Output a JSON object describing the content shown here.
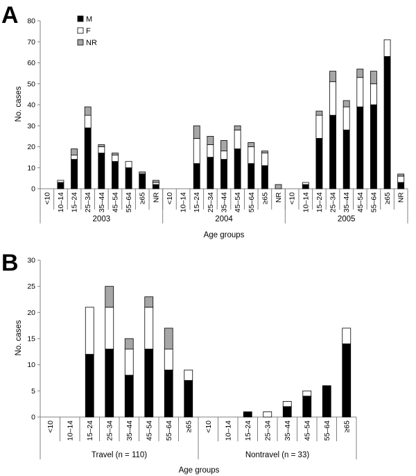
{
  "figure": {
    "panel_labels": [
      "A",
      "B"
    ]
  },
  "colors": {
    "M": "#000000",
    "F": "#ffffff",
    "NR": "#a6a6a6",
    "stroke": "#000000",
    "axis": "#808080"
  },
  "chart_data": [
    {
      "type": "bar",
      "stacked": true,
      "panel": "A",
      "xlabel": "Age groups",
      "ylabel": "No. cases",
      "ylim": [
        0,
        80
      ],
      "yticks": [
        0,
        10,
        20,
        30,
        40,
        50,
        60,
        70,
        80
      ],
      "legend": {
        "position": "top-left",
        "entries": [
          "M",
          "F",
          "NR"
        ]
      },
      "groups": [
        {
          "name": "2003",
          "categories": [
            "<10",
            "10–14",
            "15–24",
            "25–34",
            "35–44",
            "45–54",
            "55–64",
            "≥65",
            "NR"
          ],
          "series": [
            {
              "name": "M",
              "values": [
                0,
                3,
                14,
                29,
                17,
                13,
                10,
                7,
                2
              ]
            },
            {
              "name": "F",
              "values": [
                0,
                1,
                2,
                6,
                3,
                3,
                3,
                0,
                1
              ]
            },
            {
              "name": "NR",
              "values": [
                0,
                0,
                3,
                4,
                1,
                1,
                0,
                1,
                1
              ]
            }
          ]
        },
        {
          "name": "2004",
          "categories": [
            "<10",
            "10–14",
            "15–24",
            "25–34",
            "35–44",
            "45–54",
            "55–64",
            "≥65",
            "NR"
          ],
          "series": [
            {
              "name": "M",
              "values": [
                0,
                0,
                12,
                15,
                14,
                19,
                12,
                11,
                0
              ]
            },
            {
              "name": "F",
              "values": [
                0,
                0,
                12,
                6,
                4,
                9,
                8,
                6,
                0
              ]
            },
            {
              "name": "NR",
              "values": [
                0,
                0,
                6,
                4,
                5,
                2,
                2,
                1,
                2
              ]
            }
          ]
        },
        {
          "name": "2005",
          "categories": [
            "<10",
            "10–14",
            "15–24",
            "25–34",
            "35–44",
            "45–54",
            "55–64",
            "≥65",
            "NR"
          ],
          "series": [
            {
              "name": "M",
              "values": [
                0,
                2,
                24,
                35,
                28,
                39,
                40,
                63,
                3
              ]
            },
            {
              "name": "F",
              "values": [
                0,
                1,
                11,
                16,
                11,
                14,
                10,
                8,
                3
              ]
            },
            {
              "name": "NR",
              "values": [
                0,
                0,
                2,
                5,
                3,
                4,
                6,
                0,
                1
              ]
            }
          ]
        }
      ]
    },
    {
      "type": "bar",
      "stacked": true,
      "panel": "B",
      "xlabel": "Age groups",
      "ylabel": "No. cases",
      "ylim": [
        0,
        30
      ],
      "yticks": [
        0,
        5,
        10,
        15,
        20,
        25,
        30
      ],
      "groups": [
        {
          "name": "Travel (n = 110)",
          "categories": [
            "<10",
            "10–14",
            "15–24",
            "25–34",
            "35–44",
            "45–54",
            "55–64",
            "≥65"
          ],
          "series": [
            {
              "name": "M",
              "values": [
                0,
                0,
                12,
                13,
                8,
                13,
                9,
                7
              ]
            },
            {
              "name": "F",
              "values": [
                0,
                0,
                9,
                8,
                5,
                8,
                4,
                2
              ]
            },
            {
              "name": "NR",
              "values": [
                0,
                0,
                0,
                4,
                2,
                2,
                4,
                0
              ]
            }
          ]
        },
        {
          "name": "Nontravel (n = 33)",
          "categories": [
            "<10",
            "10–14",
            "15–24",
            "25–34",
            "35–44",
            "45–54",
            "55–64",
            "≥65"
          ],
          "series": [
            {
              "name": "M",
              "values": [
                0,
                0,
                1,
                0,
                2,
                4,
                6,
                14
              ]
            },
            {
              "name": "F",
              "values": [
                0,
                0,
                0,
                1,
                1,
                1,
                0,
                3
              ]
            },
            {
              "name": "NR",
              "values": [
                0,
                0,
                0,
                0,
                0,
                0,
                0,
                0
              ]
            }
          ]
        }
      ]
    }
  ]
}
